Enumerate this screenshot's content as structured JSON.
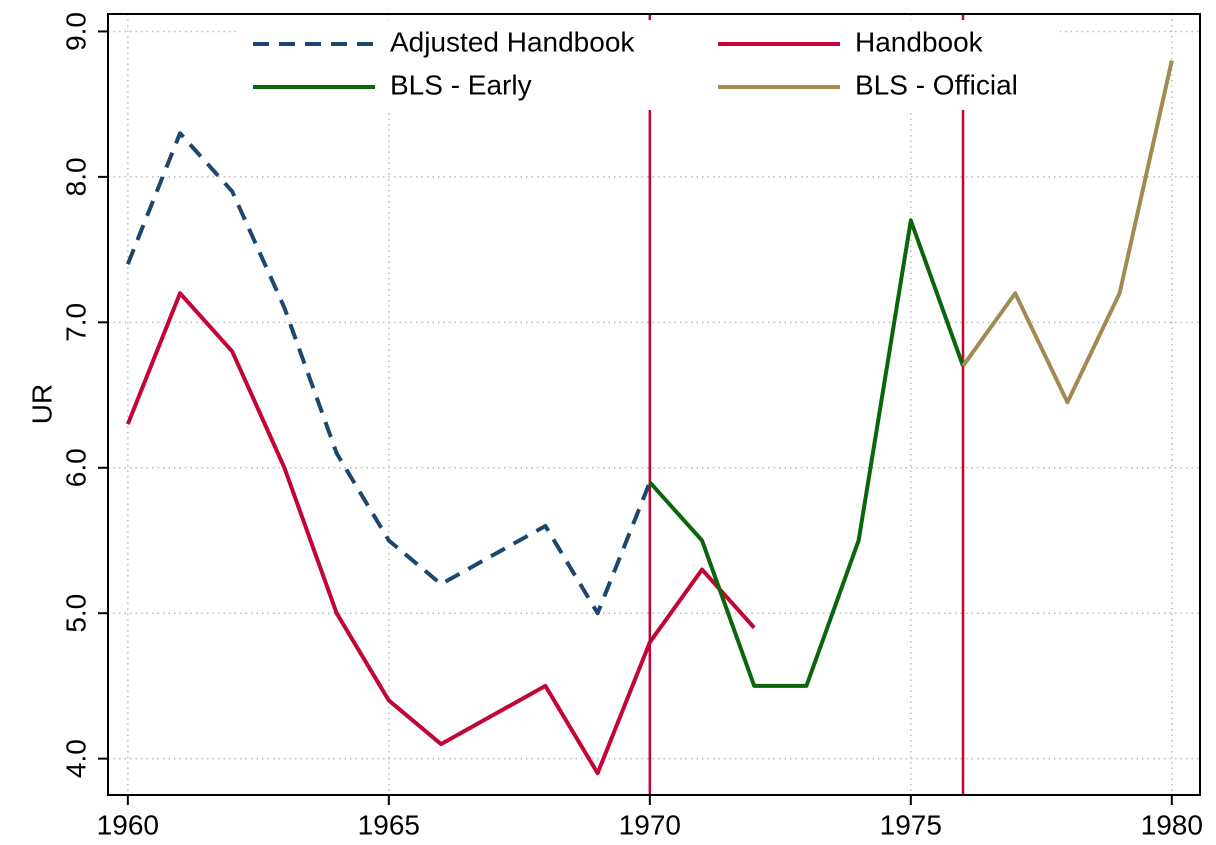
{
  "chart_data": {
    "type": "line",
    "y_label": "UR",
    "x": [
      1960,
      1961,
      1962,
      1963,
      1964,
      1965,
      1966,
      1967,
      1968,
      1969,
      1970,
      1971,
      1972,
      1973,
      1974,
      1975,
      1976,
      1977,
      1978,
      1979,
      1980
    ],
    "series": [
      {
        "name": "Adjusted Handbook",
        "color": "#1a476f",
        "dashed": true,
        "values": [
          7.4,
          8.3,
          7.9,
          7.1,
          6.1,
          5.5,
          5.2,
          5.4,
          5.6,
          5.0,
          5.9,
          null,
          null,
          null,
          null,
          null,
          null,
          null,
          null,
          null,
          null
        ]
      },
      {
        "name": "Handbook",
        "color": "#c10534",
        "dashed": false,
        "values": [
          6.3,
          7.2,
          6.8,
          6.0,
          5.0,
          4.4,
          4.1,
          4.3,
          4.5,
          3.9,
          4.8,
          5.3,
          4.9,
          null,
          null,
          null,
          null,
          null,
          null,
          null,
          null
        ]
      },
      {
        "name": "BLS - Early",
        "color": "#0b650b",
        "dashed": false,
        "values": [
          null,
          null,
          null,
          null,
          null,
          null,
          null,
          null,
          null,
          null,
          5.9,
          5.5,
          4.5,
          4.5,
          5.5,
          7.7,
          6.7,
          null,
          null,
          null,
          null
        ]
      },
      {
        "name": "BLS - Official",
        "color": "#a08c50",
        "dashed": false,
        "values": [
          null,
          null,
          null,
          null,
          null,
          null,
          null,
          null,
          null,
          null,
          null,
          null,
          null,
          null,
          null,
          null,
          6.7,
          7.2,
          6.45,
          7.2,
          8.8
        ]
      }
    ],
    "vlines": [
      1970,
      1976
    ],
    "vline_color": "#c10534",
    "xlim": [
      1959.62,
      1980.54
    ],
    "ylim": [
      3.75,
      9.12
    ],
    "xticks": [
      1960,
      1965,
      1970,
      1975,
      1980
    ],
    "yticks": [
      {
        "value": 4,
        "label": "4.0"
      },
      {
        "value": 5,
        "label": "5.0"
      },
      {
        "value": 6,
        "label": "6.0"
      },
      {
        "value": 7,
        "label": "7.0"
      },
      {
        "value": 8,
        "label": "8.0"
      },
      {
        "value": 9,
        "label": "9.0"
      }
    ],
    "grid": true,
    "legend": "top"
  }
}
